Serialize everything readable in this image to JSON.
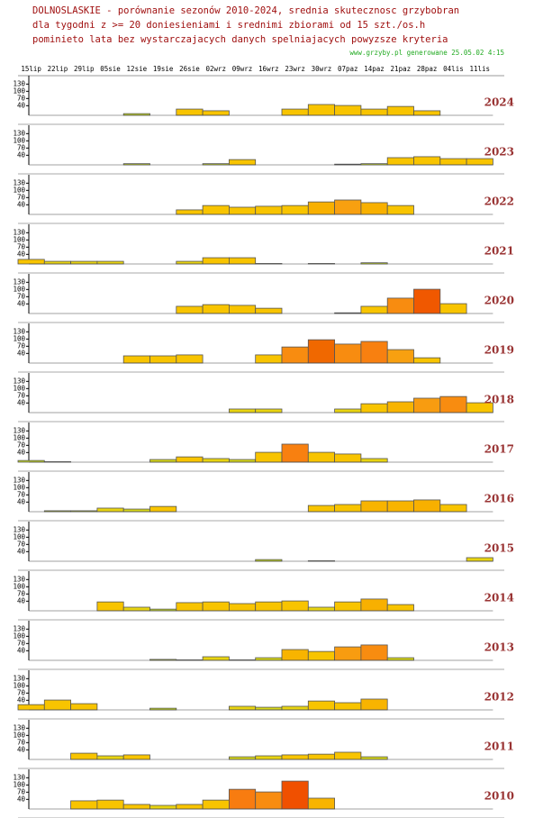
{
  "chart_data": {
    "type": "bar",
    "title": "DOLNOSLASKIE - porównanie sezonów 2010-2024, srednia skutecznosc grzybobran",
    "subtitle": [
      "dla tygodni z >= 20 doniesieniami i srednimi zbiorami od 15 szt./os.h",
      "pominieto lata bez wystarczajacych danych spelniajacych powyzsze kryteria"
    ],
    "source": "www.grzyby.pl generowane 25.05.02  4:15",
    "categories": [
      "15lip",
      "22lip",
      "29lip",
      "05sie",
      "12sie",
      "19sie",
      "26sie",
      "02wrz",
      "09wrz",
      "16wrz",
      "23wrz",
      "30wrz",
      "07paz",
      "14paz",
      "21paz",
      "28paz",
      "04lis",
      "11lis"
    ],
    "ylim": [
      0,
      165
    ],
    "yticks": [
      130,
      100,
      70,
      40
    ],
    "series": [
      {
        "name": "2024",
        "values": [
          null,
          null,
          null,
          null,
          7,
          null,
          26,
          19,
          null,
          null,
          26,
          45,
          41,
          26,
          37,
          19,
          null,
          null
        ],
        "colors": [
          null,
          null,
          null,
          null,
          "#c8dc20",
          null,
          "#f8c400",
          "#f8c400",
          null,
          null,
          "#f8c400",
          "#f8c400",
          "#f8c400",
          "#f8c400",
          "#f8c400",
          "#f8c400",
          null,
          null
        ]
      },
      {
        "name": "2023",
        "values": [
          null,
          null,
          null,
          null,
          5,
          null,
          null,
          5,
          22,
          null,
          null,
          null,
          3,
          5,
          30,
          34,
          26,
          26
        ],
        "colors": [
          null,
          null,
          null,
          null,
          "#c8dc20",
          null,
          null,
          "#c8dc20",
          "#f8c400",
          null,
          null,
          null,
          "#c8dc20",
          "#c8dc20",
          "#f8c400",
          "#f8c400",
          "#f8c400",
          "#f8c400"
        ]
      },
      {
        "name": "2022",
        "values": [
          null,
          null,
          null,
          null,
          null,
          null,
          19,
          37,
          30,
          34,
          37,
          52,
          60,
          49,
          37,
          null,
          null,
          null
        ],
        "colors": [
          null,
          null,
          null,
          null,
          null,
          null,
          "#f8c400",
          "#f8c400",
          "#f8c400",
          "#f8c400",
          "#f8c400",
          "#f8b000",
          "#f8a010",
          "#f8b000",
          "#f8c400",
          null,
          null,
          null
        ]
      },
      {
        "name": "2021",
        "values": [
          19,
          11,
          11,
          11,
          null,
          null,
          11,
          26,
          26,
          2,
          null,
          2,
          null,
          5,
          null,
          null,
          null,
          null
        ],
        "colors": [
          "#f8c400",
          "#e8d410",
          "#e8d410",
          "#e8d410",
          null,
          null,
          "#e8d410",
          "#f8c400",
          "#f8c400",
          "#c8dc20",
          null,
          "#c8dc20",
          null,
          "#c8dc20",
          null,
          null,
          null,
          null
        ]
      },
      {
        "name": "2020",
        "values": [
          null,
          null,
          null,
          null,
          null,
          null,
          30,
          37,
          34,
          22,
          null,
          null,
          3,
          30,
          64,
          101,
          41,
          null
        ],
        "colors": [
          null,
          null,
          null,
          null,
          null,
          null,
          "#f8c400",
          "#f8c400",
          "#f8c400",
          "#f8c400",
          null,
          null,
          "#c8dc20",
          "#f8c400",
          "#f88c10",
          "#f05800",
          "#f8c400",
          null
        ]
      },
      {
        "name": "2019",
        "values": [
          null,
          null,
          null,
          null,
          30,
          30,
          34,
          null,
          null,
          34,
          67,
          97,
          79,
          90,
          56,
          22,
          null,
          null
        ],
        "colors": [
          null,
          null,
          null,
          null,
          "#f8c400",
          "#f8c400",
          "#f8c400",
          null,
          null,
          "#f8c400",
          "#f88c10",
          "#f06800",
          "#f88c10",
          "#f88010",
          "#f8a010",
          "#f8c400",
          null,
          null
        ]
      },
      {
        "name": "2018",
        "values": [
          null,
          null,
          null,
          null,
          null,
          null,
          null,
          null,
          15,
          15,
          null,
          null,
          15,
          37,
          45,
          60,
          67,
          41
        ],
        "colors": [
          null,
          null,
          null,
          null,
          null,
          null,
          null,
          null,
          "#e8d410",
          "#e8d410",
          null,
          null,
          "#e8d410",
          "#f8c400",
          "#f8b400",
          "#f89c10",
          "#f88c10",
          "#f8c400"
        ]
      },
      {
        "name": "2017",
        "values": [
          7,
          2,
          null,
          null,
          null,
          11,
          22,
          15,
          11,
          41,
          75,
          41,
          34,
          15,
          null,
          null,
          null,
          null
        ],
        "colors": [
          "#c8dc20",
          "#c8dc20",
          null,
          null,
          null,
          "#d8d818",
          "#f8c400",
          "#e8d410",
          "#d8d818",
          "#f8c400",
          "#f88010",
          "#f8c400",
          "#f8c400",
          "#e8d410",
          null,
          null,
          null,
          null
        ]
      },
      {
        "name": "2016",
        "values": [
          null,
          4,
          4,
          15,
          11,
          22,
          null,
          null,
          null,
          null,
          null,
          26,
          30,
          45,
          45,
          49,
          30,
          null
        ],
        "colors": [
          null,
          "#c8dc20",
          "#c8dc20",
          "#e8d410",
          "#d8d818",
          "#f8c400",
          null,
          null,
          null,
          null,
          null,
          "#f8c400",
          "#f8c400",
          "#f8b400",
          "#f8b400",
          "#f8b000",
          "#f8c400",
          null
        ]
      },
      {
        "name": "2015",
        "values": [
          null,
          null,
          null,
          null,
          null,
          null,
          null,
          null,
          null,
          7,
          null,
          2,
          null,
          null,
          null,
          null,
          null,
          15
        ],
        "colors": [
          null,
          null,
          null,
          null,
          null,
          null,
          null,
          null,
          null,
          "#c8dc20",
          null,
          "#c8dc20",
          null,
          null,
          null,
          null,
          null,
          "#e8d410"
        ]
      },
      {
        "name": "2014",
        "values": [
          null,
          null,
          null,
          37,
          15,
          7,
          34,
          37,
          30,
          37,
          41,
          15,
          37,
          49,
          26,
          null,
          null,
          null
        ],
        "colors": [
          null,
          null,
          null,
          "#f8c400",
          "#e8d410",
          "#c8dc20",
          "#f8c400",
          "#f8c400",
          "#f8c400",
          "#f8c400",
          "#f8c400",
          "#e8d410",
          "#f8c400",
          "#f8b000",
          "#f8c400",
          null,
          null,
          null
        ]
      },
      {
        "name": "2013",
        "values": [
          null,
          null,
          null,
          null,
          null,
          4,
          2,
          15,
          2,
          11,
          45,
          37,
          56,
          64,
          11,
          null,
          null,
          null
        ],
        "colors": [
          null,
          null,
          null,
          null,
          null,
          "#c8dc20",
          "#c8dc20",
          "#e8d410",
          "#c8dc20",
          "#d8d818",
          "#f8b400",
          "#f8c400",
          "#f89c10",
          "#f88c10",
          "#d8d818",
          null,
          null,
          null
        ]
      },
      {
        "name": "2012",
        "values": [
          22,
          41,
          26,
          null,
          null,
          7,
          null,
          null,
          15,
          11,
          15,
          37,
          30,
          45,
          null,
          null,
          null,
          null
        ],
        "colors": [
          "#f8c400",
          "#f8c400",
          "#f8c400",
          null,
          null,
          "#c8dc20",
          null,
          null,
          "#e8d410",
          "#d8d818",
          "#e8d410",
          "#f8c400",
          "#f8c400",
          "#f8b400",
          null,
          null,
          null,
          null
        ]
      },
      {
        "name": "2011",
        "values": [
          null,
          null,
          26,
          15,
          19,
          null,
          null,
          null,
          11,
          15,
          19,
          22,
          30,
          11,
          null,
          null,
          null,
          null
        ],
        "colors": [
          null,
          null,
          "#f8c400",
          "#e8d410",
          "#f8c400",
          null,
          null,
          null,
          "#d8d818",
          "#e8d410",
          "#f8c400",
          "#f8c400",
          "#f8c400",
          "#d8d818",
          null,
          null,
          null,
          null
        ]
      },
      {
        "name": "2010",
        "values": [
          null,
          null,
          34,
          37,
          19,
          15,
          19,
          37,
          82,
          71,
          116,
          45,
          null,
          null,
          null,
          null,
          null,
          null
        ],
        "colors": [
          null,
          null,
          "#f8c400",
          "#f8c400",
          "#f8c400",
          "#e8d410",
          "#f8c400",
          "#f8c400",
          "#f87c10",
          "#f88c10",
          "#f05000",
          "#f8b400",
          null,
          null,
          null,
          null,
          null,
          null
        ]
      }
    ]
  }
}
